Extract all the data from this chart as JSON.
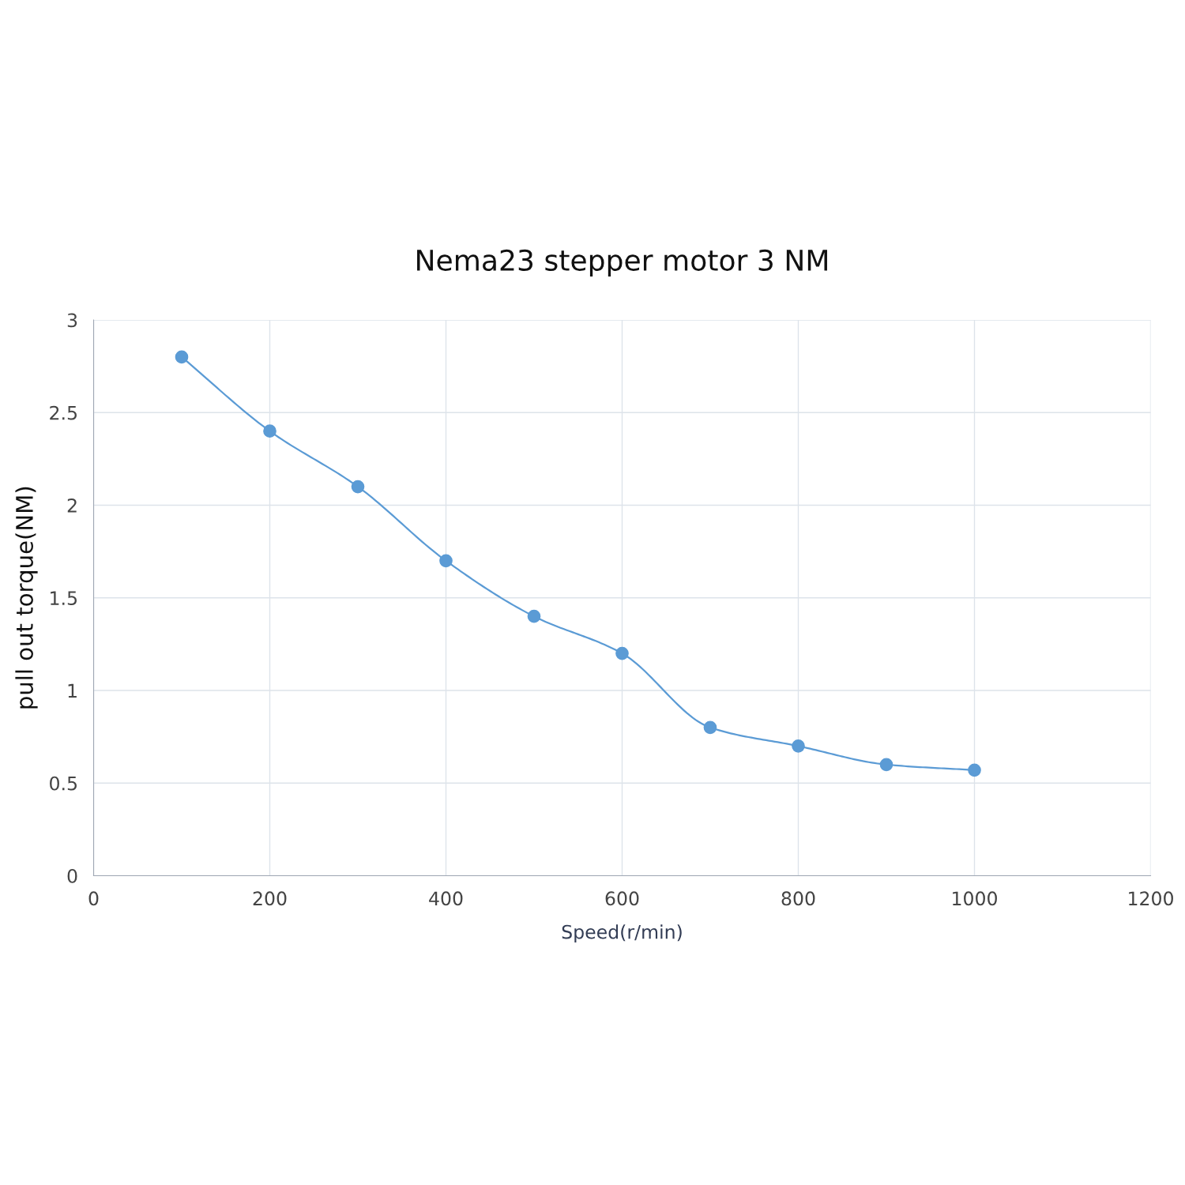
{
  "chart_data": {
    "type": "line",
    "title": "Nema23 stepper motor 3 NM",
    "xlabel": "Speed(r/min)",
    "ylabel": "pull out torque(NM)",
    "x": [
      100,
      200,
      300,
      400,
      500,
      600,
      700,
      800,
      900,
      1000
    ],
    "series": [
      {
        "color": "#5b9bd5",
        "values": [
          2.8,
          2.4,
          2.1,
          1.7,
          1.4,
          1.2,
          0.8,
          0.7,
          0.6,
          0.57
        ]
      }
    ],
    "xlim": [
      0,
      1200
    ],
    "xticks": [
      0,
      200,
      400,
      600,
      800,
      1000,
      1200
    ],
    "ylim": [
      0,
      3
    ],
    "yticks": [
      0,
      0.5,
      1,
      1.5,
      2,
      2.5,
      3
    ],
    "grid": true,
    "marker": "circle",
    "line_style": "solid",
    "legend": false
  }
}
